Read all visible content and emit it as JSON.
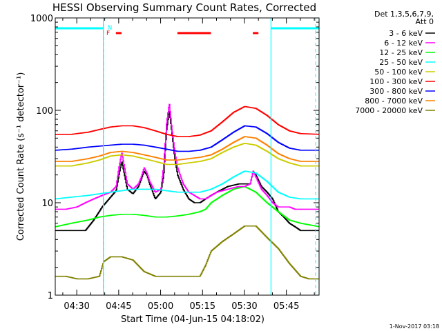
{
  "chart_data": {
    "type": "line",
    "title": "HESSI Observing Summary Count Rates, Corrected",
    "xlabel": "Start Time (04-Jun-15 04:18:02)",
    "ylabel": "Corrected Count Rate (s⁻¹ detector⁻¹)",
    "footer": "1-Nov-2017 03:18",
    "y_scale": "log",
    "ylim": [
      1,
      1000
    ],
    "xlim_minutes": [
      4.3,
      98.7
    ],
    "x_ticks": [
      {
        "label": "04:30",
        "min": 12
      },
      {
        "label": "04:45",
        "min": 27
      },
      {
        "label": "05:00",
        "min": 42
      },
      {
        "label": "05:15",
        "min": 57
      },
      {
        "label": "05:30",
        "min": 72
      },
      {
        "label": "05:45",
        "min": 87
      }
    ],
    "y_ticks": [
      {
        "label": "1",
        "value": 1
      },
      {
        "label": "10",
        "value": 10
      },
      {
        "label": "100",
        "value": 100
      },
      {
        "label": "1000",
        "value": 1000
      }
    ],
    "legend_header": [
      "Det 1,3,5,6,7,9,",
      "Att 0"
    ],
    "night_intervals": [
      [
        4.3,
        21.5
      ],
      [
        81.5,
        98.7
      ]
    ],
    "night_label": "N",
    "flare_label": "F",
    "flare_intervals": [
      [
        26.0,
        28.0
      ],
      [
        48.0,
        60.0
      ],
      [
        75.0,
        77.0
      ]
    ],
    "vlines": [
      21.5,
      81.5
    ],
    "series": [
      {
        "name": "3 - 6 keV",
        "color": "#000000",
        "x": [
          4.3,
          8,
          12,
          15,
          18,
          21,
          24,
          26,
          27,
          28,
          29,
          30,
          32,
          34,
          35,
          36,
          37,
          38,
          40,
          42,
          43,
          44,
          45,
          46,
          47,
          48,
          50,
          52,
          54,
          56,
          58,
          60,
          62,
          66,
          70,
          72,
          74,
          75,
          76,
          78,
          80,
          82,
          84,
          86,
          88,
          90,
          92,
          95,
          98.7
        ],
        "y": [
          5.0,
          5.0,
          5.0,
          5.0,
          6.5,
          9.0,
          11.5,
          13.5,
          20,
          28,
          20,
          14,
          12.5,
          15,
          18,
          22,
          20,
          16,
          11,
          13,
          20,
          60,
          100,
          55,
          30,
          20,
          14,
          11,
          10,
          10,
          11,
          12,
          13,
          15,
          16,
          16,
          16,
          22,
          20,
          15,
          13,
          11,
          8,
          7,
          6.0,
          5.5,
          5.0,
          5.0,
          5.0
        ]
      },
      {
        "name": "6 - 12 keV",
        "color": "#ff00ff",
        "x": [
          4.3,
          8,
          12,
          15,
          18,
          21,
          24,
          26,
          27,
          28,
          29,
          30,
          32,
          34,
          35,
          36,
          37,
          38,
          40,
          42,
          43,
          44,
          45,
          46,
          47,
          48,
          50,
          52,
          54,
          56,
          58,
          60,
          62,
          66,
          70,
          72,
          74,
          75,
          76,
          78,
          80,
          82,
          84,
          86,
          88,
          90,
          92,
          95,
          98.7
        ],
        "y": [
          8.5,
          8.5,
          9,
          10,
          11,
          12,
          13,
          15,
          24,
          35,
          24,
          16,
          14,
          16,
          19,
          24,
          21,
          17,
          13,
          14,
          25,
          70,
          120,
          60,
          35,
          24,
          16,
          13,
          12,
          11,
          11,
          12,
          13,
          14,
          15,
          15,
          16,
          22,
          19,
          14,
          12,
          10,
          9,
          9,
          9,
          8.5,
          8.5,
          8.5,
          8.5
        ]
      },
      {
        "name": "12 - 25 keV",
        "color": "#00ff00",
        "x": [
          4.3,
          10,
          16,
          20,
          24,
          28,
          32,
          36,
          40,
          44,
          48,
          52,
          56,
          58,
          60,
          64,
          68,
          72,
          76,
          80,
          84,
          88,
          92,
          98.7
        ],
        "y": [
          5.5,
          6.0,
          6.5,
          7.0,
          7.3,
          7.5,
          7.5,
          7.3,
          7.0,
          7.0,
          7.2,
          7.5,
          8,
          8.5,
          10,
          12,
          14,
          15,
          13,
          10,
          8,
          6.5,
          6,
          5.5
        ]
      },
      {
        "name": "25 - 50 keV",
        "color": "#00ffff",
        "x": [
          4.3,
          10,
          16,
          20,
          24,
          28,
          32,
          36,
          40,
          44,
          48,
          52,
          56,
          60,
          64,
          68,
          72,
          76,
          80,
          84,
          88,
          92,
          98.7
        ],
        "y": [
          11,
          11.5,
          12,
          12.5,
          13,
          13.5,
          14,
          14,
          14,
          13.5,
          13,
          13,
          13,
          14,
          16,
          19,
          22,
          21,
          17,
          13,
          11.5,
          11,
          11
        ]
      },
      {
        "name": "50 - 100 keV",
        "color": "#cccc00",
        "x": [
          4.3,
          10,
          16,
          20,
          24,
          28,
          32,
          36,
          40,
          44,
          48,
          52,
          56,
          60,
          64,
          68,
          72,
          76,
          80,
          84,
          88,
          92,
          98.7
        ],
        "y": [
          25,
          25,
          27,
          29,
          32,
          33,
          32,
          30,
          28,
          26,
          26,
          27,
          28,
          30,
          35,
          40,
          44,
          42,
          36,
          30,
          27,
          25,
          25
        ]
      },
      {
        "name": "100 - 300 keV",
        "color": "#ff0000",
        "x": [
          4.3,
          10,
          16,
          20,
          24,
          28,
          32,
          36,
          40,
          44,
          48,
          52,
          56,
          60,
          64,
          68,
          72,
          76,
          80,
          84,
          88,
          92,
          98.7
        ],
        "y": [
          55,
          55,
          58,
          62,
          66,
          68,
          68,
          65,
          60,
          55,
          52,
          52,
          54,
          60,
          75,
          95,
          110,
          105,
          88,
          70,
          60,
          56,
          55
        ]
      },
      {
        "name": "300 - 800 keV",
        "color": "#0000ff",
        "x": [
          4.3,
          10,
          16,
          20,
          24,
          28,
          32,
          36,
          40,
          44,
          48,
          52,
          56,
          60,
          64,
          68,
          72,
          76,
          80,
          84,
          88,
          92,
          98.7
        ],
        "y": [
          37,
          38,
          40,
          41,
          42,
          43,
          43,
          42,
          40,
          38,
          36,
          36,
          37,
          40,
          48,
          58,
          68,
          66,
          56,
          45,
          39,
          37,
          37
        ]
      },
      {
        "name": "800 - 7000 keV",
        "color": "#ff8000",
        "x": [
          4.3,
          10,
          16,
          20,
          24,
          28,
          32,
          36,
          40,
          44,
          48,
          52,
          56,
          60,
          64,
          68,
          72,
          76,
          80,
          84,
          88,
          92,
          98.7
        ],
        "y": [
          28,
          28,
          30,
          32,
          35,
          36,
          35,
          33,
          31,
          29,
          29,
          30,
          31,
          33,
          38,
          45,
          52,
          50,
          42,
          34,
          30,
          28,
          28
        ]
      },
      {
        "name": "7000 - 20000 keV",
        "color": "#808000",
        "x": [
          4.3,
          8,
          12,
          16,
          20,
          21.5,
          24,
          28,
          32,
          36,
          40,
          44,
          48,
          52,
          56,
          58,
          60,
          64,
          68,
          72,
          76,
          80,
          84,
          88,
          92,
          95,
          98.7
        ],
        "y": [
          1.6,
          1.6,
          1.5,
          1.5,
          1.6,
          2.3,
          2.6,
          2.6,
          2.4,
          1.8,
          1.6,
          1.6,
          1.6,
          1.6,
          1.6,
          2.1,
          3,
          3.8,
          4.6,
          5.6,
          5.6,
          4.2,
          3.2,
          2.2,
          1.6,
          1.5,
          1.5
        ]
      }
    ]
  }
}
